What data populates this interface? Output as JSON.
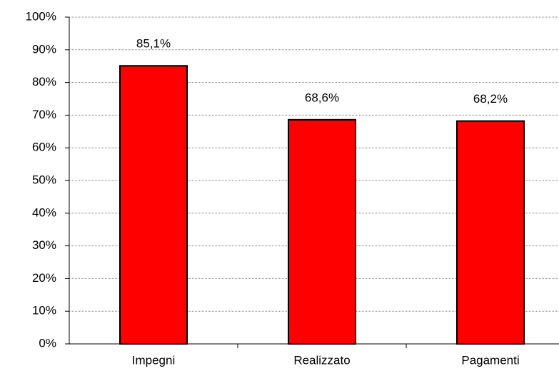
{
  "chart_data": {
    "type": "bar",
    "categories": [
      "Impegni",
      "Realizzato",
      "Pagamenti"
    ],
    "values": [
      85.1,
      68.6,
      68.2
    ],
    "value_labels": [
      "85,1%",
      "68,6%",
      "68,2%"
    ],
    "color": "#ff0000",
    "ylim": [
      0,
      100
    ],
    "yticks": [
      {
        "value": 0,
        "label": "0%"
      },
      {
        "value": 10,
        "label": "10%"
      },
      {
        "value": 20,
        "label": "20%"
      },
      {
        "value": 30,
        "label": "30%"
      },
      {
        "value": 40,
        "label": "40%"
      },
      {
        "value": 50,
        "label": "50%"
      },
      {
        "value": 60,
        "label": "60%"
      },
      {
        "value": 70,
        "label": "70%"
      },
      {
        "value": 80,
        "label": "80%"
      },
      {
        "value": 90,
        "label": "90%"
      },
      {
        "value": 100,
        "label": "100%"
      }
    ],
    "grid": true
  }
}
